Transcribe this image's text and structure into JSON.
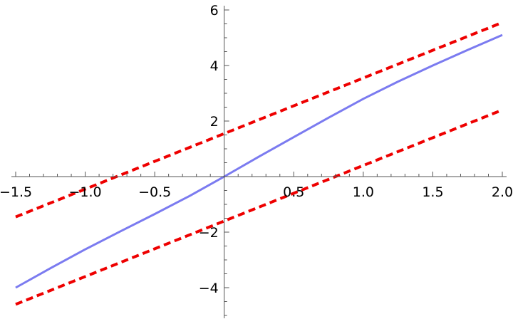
{
  "chart_data": {
    "type": "line",
    "title": "",
    "xlabel": "",
    "ylabel": "",
    "xlim": [
      -1.5,
      2.0
    ],
    "ylim": [
      -5.0,
      6.0
    ],
    "grid": false,
    "legend": "none",
    "x_ticks": [
      {
        "value": -1.5,
        "label": "−1.5"
      },
      {
        "value": -1.0,
        "label": "−1.0"
      },
      {
        "value": -0.5,
        "label": "−0.5"
      },
      {
        "value": 0.5,
        "label": "0.5"
      },
      {
        "value": 1.0,
        "label": "1.0"
      },
      {
        "value": 1.5,
        "label": "1.5"
      },
      {
        "value": 2.0,
        "label": "2.0"
      }
    ],
    "y_ticks": [
      {
        "value": -4,
        "label": "−4"
      },
      {
        "value": -2,
        "label": "−2"
      },
      {
        "value": 2,
        "label": "2"
      },
      {
        "value": 4,
        "label": "4"
      },
      {
        "value": 6,
        "label": "6"
      }
    ],
    "series": [
      {
        "style": "solid",
        "color": "#7b7bf0",
        "x": [
          -1.5,
          -1.25,
          -1.0,
          -0.75,
          -0.5,
          -0.25,
          0.0,
          0.25,
          0.5,
          0.75,
          1.0,
          1.25,
          1.5,
          1.75,
          2.0
        ],
        "y": [
          -4.0,
          -3.3,
          -2.62,
          -1.98,
          -1.35,
          -0.7,
          0.0,
          0.72,
          1.42,
          2.12,
          2.8,
          3.42,
          4.0,
          4.56,
          5.1
        ]
      },
      {
        "style": "dashed",
        "color": "#ee0000",
        "x": [
          -1.5,
          2.0
        ],
        "y": [
          -1.45,
          5.55
        ]
      },
      {
        "style": "dashed",
        "color": "#ee0000",
        "x": [
          -1.5,
          2.0
        ],
        "y": [
          -4.6,
          2.4
        ]
      }
    ]
  }
}
